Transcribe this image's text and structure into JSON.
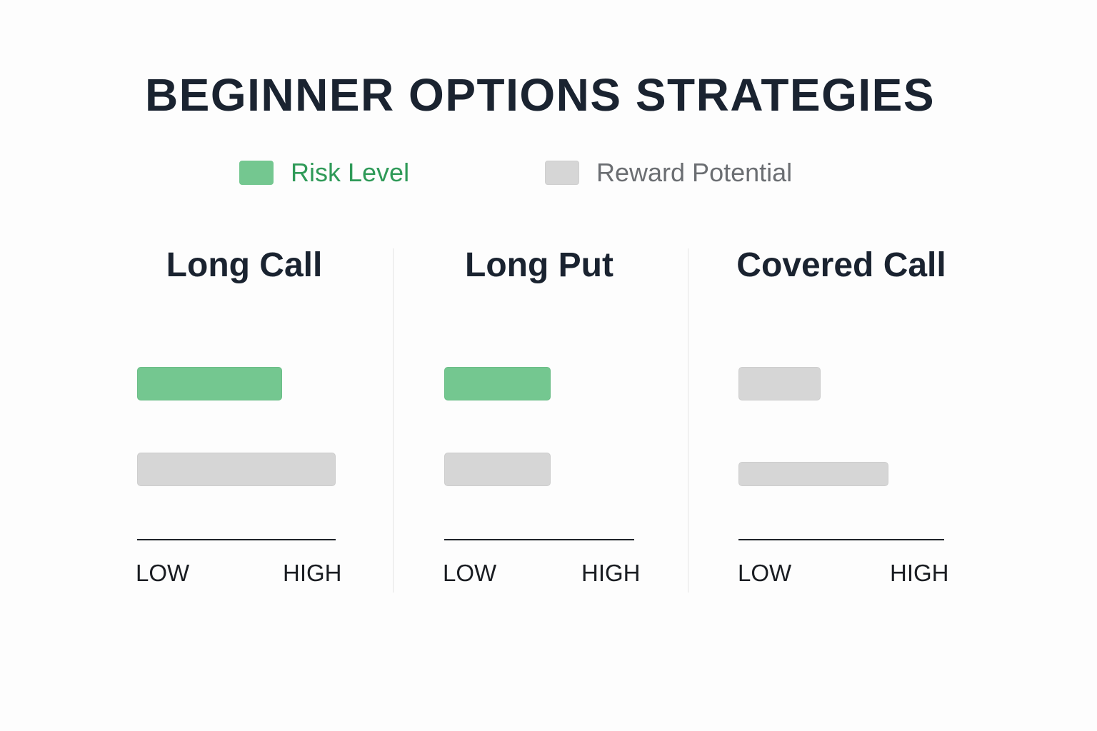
{
  "chart_data": {
    "type": "bar",
    "title": "BEGINNER OPTIONS STRATEGIES",
    "legend": [
      {
        "name": "Risk Level",
        "color": "#74c790"
      },
      {
        "name": "Reward Potential",
        "color": "#d6d6d6"
      }
    ],
    "legend_placement": "top",
    "orientation": "horizontal",
    "axis": {
      "low_label": "LOW",
      "high_label": "HIGH",
      "range": [
        0,
        1
      ]
    },
    "panels": [
      {
        "name": "Long Call",
        "risk": 0.73,
        "reward": 1.0
      },
      {
        "name": "Long Put",
        "risk": 0.56,
        "reward": 0.56
      },
      {
        "name": "Covered Call",
        "risk": 0.4,
        "reward": 0.73
      }
    ]
  }
}
